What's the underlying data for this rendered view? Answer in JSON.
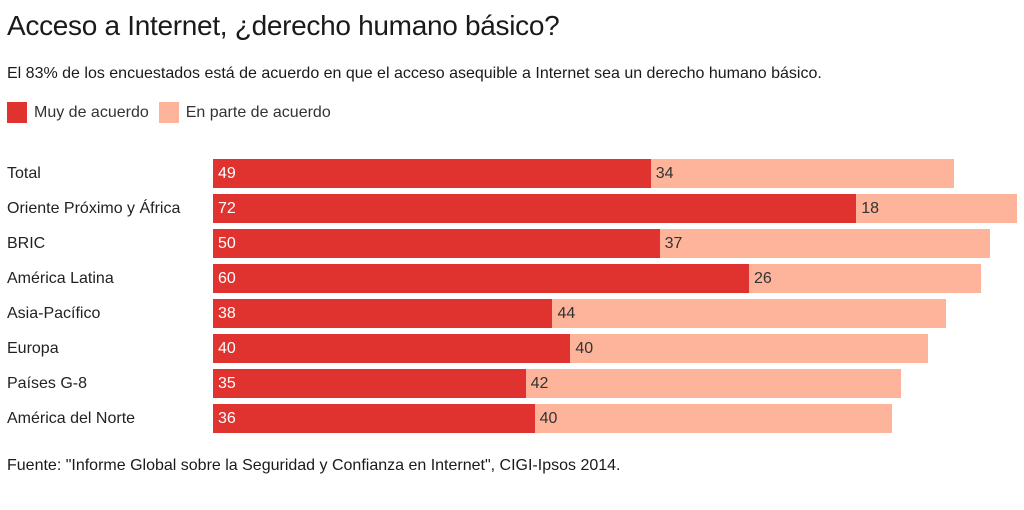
{
  "title": "Acceso a Internet, ¿derecho humano básico?",
  "subtitle": "El 83% de los encuestados está de acuerdo en que el acceso asequible a Internet sea un derecho humano básico.",
  "source": "Fuente: \"Informe Global sobre la Seguridad y Confianza en Internet\", CIGI-Ipsos 2014.",
  "colors": {
    "muy": "#e03330",
    "parte": "#fdb49a"
  },
  "chart_data": {
    "type": "bar",
    "orientation": "horizontal",
    "stacked": true,
    "title": "Acceso a Internet, ¿derecho humano básico?",
    "xlabel": "",
    "ylabel": "",
    "grid": false,
    "legend_position": "top-left",
    "xlim": [
      0,
      90
    ],
    "categories": [
      "Total",
      "Oriente Próximo y África",
      "BRIC",
      "América Latina",
      "Asia-Pacífico",
      "Europa",
      "Países G-8",
      "América del Norte"
    ],
    "series": [
      {
        "name": "Muy de acuerdo",
        "color": "#e03330",
        "values": [
          49,
          72,
          50,
          60,
          38,
          40,
          35,
          36
        ]
      },
      {
        "name": "En parte de acuerdo",
        "color": "#fdb49a",
        "values": [
          34,
          18,
          37,
          26,
          44,
          40,
          42,
          40
        ]
      }
    ]
  }
}
